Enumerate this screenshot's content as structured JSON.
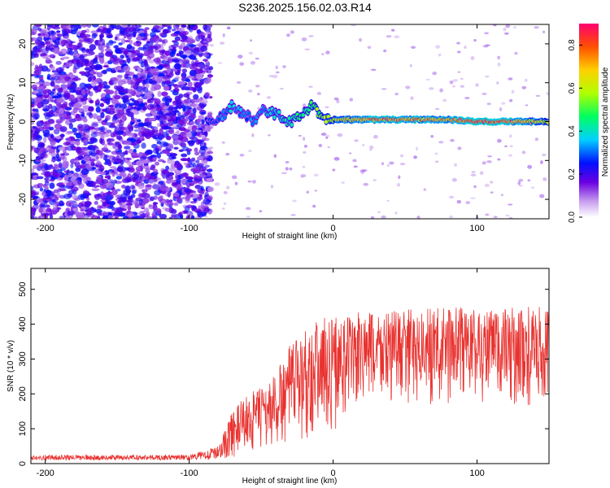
{
  "title": "S236.2025.156.02.03.R14",
  "colors": {
    "snr_line": "#e8322f",
    "spectral_low": "#7b00d4",
    "spectral_high": "#e0003a"
  },
  "chart_data": [
    {
      "type": "heatmap",
      "xlabel": "Height of straight line (km)",
      "ylabel": "Frequency (Hz)",
      "xlim": [
        -210,
        150
      ],
      "ylim": [
        -25,
        25
      ],
      "x_ticks": [
        "-200",
        "-100",
        "0",
        "100"
      ],
      "y_ticks": [
        "20",
        "10",
        "0",
        "-10",
        "-20"
      ],
      "colorbar": {
        "label": "Normalized spectral amplitude",
        "ticks": [
          "0.0",
          "0.2",
          "0.4",
          "0.6",
          "0.8"
        ],
        "range": [
          0,
          0.9
        ],
        "colormap": "rainbow"
      },
      "ridge": {
        "x": [
          -88,
          -78,
          -70,
          -62,
          -55,
          -48,
          -40,
          -30,
          -20,
          -15,
          -8,
          0,
          20,
          40,
          60,
          80,
          100,
          120,
          150
        ],
        "freq": [
          0,
          1,
          4,
          2,
          0,
          3,
          2,
          0,
          2,
          4,
          1,
          0.5,
          0.5,
          0.5,
          0.5,
          0.5,
          0,
          0,
          0
        ],
        "amplitude": [
          0.25,
          0.3,
          0.35,
          0.3,
          0.3,
          0.35,
          0.35,
          0.4,
          0.45,
          0.5,
          0.55,
          0.6,
          0.75,
          0.8,
          0.75,
          0.7,
          0.85,
          0.8,
          0.6
        ]
      }
    },
    {
      "type": "line",
      "xlabel": "Height of straight line (km)",
      "ylabel": "SNR (10 * v/v)",
      "xlim": [
        -210,
        150
      ],
      "ylim": [
        0,
        560
      ],
      "x_ticks": [
        "-200",
        "-100",
        "0",
        "100"
      ],
      "y_ticks": [
        "500",
        "400",
        "300",
        "200",
        "100",
        "0"
      ],
      "envelope": {
        "x": [
          -210,
          -100,
          -80,
          -70,
          -60,
          -50,
          -40,
          -30,
          -20,
          -10,
          0,
          10,
          20,
          30,
          40,
          60,
          80,
          90,
          100,
          120,
          150
        ],
        "min": [
          10,
          10,
          12,
          15,
          20,
          25,
          30,
          40,
          55,
          70,
          90,
          110,
          140,
          150,
          160,
          160,
          160,
          170,
          160,
          150,
          140
        ],
        "max": [
          25,
          25,
          50,
          150,
          200,
          220,
          260,
          340,
          390,
          420,
          425,
          430,
          435,
          440,
          440,
          445,
          450,
          455,
          445,
          450,
          450
        ]
      }
    }
  ]
}
